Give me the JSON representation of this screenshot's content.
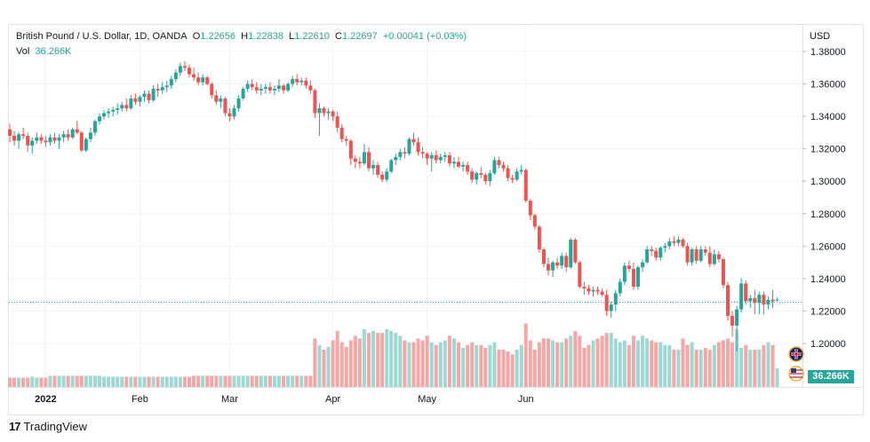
{
  "legend": {
    "symbol": "British Pound / U.S. Dollar, 1D, OANDA",
    "open_label": "O",
    "open": "1.22656",
    "high_label": "H",
    "high": "1.22838",
    "low_label": "L",
    "low": "1.22610",
    "close_label": "C",
    "close": "1.22697",
    "change": "+0.00041 (+0.03%)",
    "vol_label": "Vol",
    "vol_value": "36.266K"
  },
  "price_axis": {
    "currency": "USD",
    "ticks": [
      "1.38000",
      "1.36000",
      "1.34000",
      "1.32000",
      "1.30000",
      "1.28000",
      "1.26000",
      "1.24000",
      "1.22000",
      "1.20000"
    ]
  },
  "time_axis": {
    "ticks": [
      "2022",
      "Feb",
      "Mar",
      "Apr",
      "May",
      "Jun"
    ]
  },
  "volume_badge": "36.266K",
  "footer": {
    "brand": "TradingView"
  },
  "colors": {
    "up": "#26a69a",
    "down": "#ef5350",
    "vol_up": "#9ed8d2",
    "vol_down": "#f5a7a5",
    "grid": "#f0f3fa",
    "axis_text": "#131722"
  },
  "chart_data": {
    "type": "candlestick",
    "title": "British Pound / U.S. Dollar",
    "interval": "1D",
    "source": "OANDA",
    "x_start": "2021-12-22",
    "ylim": [
      1.19,
      1.385
    ],
    "last_close": 1.22697,
    "candles": [
      [
        1.332,
        1.3355,
        1.324,
        1.328,
        0.1
      ],
      [
        1.328,
        1.331,
        1.322,
        1.325,
        0.1
      ],
      [
        1.325,
        1.3305,
        1.32,
        1.329,
        0.1
      ],
      [
        1.329,
        1.333,
        1.326,
        1.328,
        0.1
      ],
      [
        1.328,
        1.33,
        1.318,
        1.322,
        0.1
      ],
      [
        1.322,
        1.327,
        1.317,
        1.325,
        0.11
      ],
      [
        1.325,
        1.33,
        1.323,
        1.327,
        0.1
      ],
      [
        1.327,
        1.329,
        1.323,
        1.325,
        0.1
      ],
      [
        1.325,
        1.328,
        1.321,
        1.324,
        0.1
      ],
      [
        1.324,
        1.329,
        1.322,
        1.327,
        0.12
      ],
      [
        1.327,
        1.33,
        1.323,
        1.325,
        0.12
      ],
      [
        1.325,
        1.329,
        1.32,
        1.327,
        0.12
      ],
      [
        1.327,
        1.331,
        1.324,
        1.329,
        0.12
      ],
      [
        1.329,
        1.332,
        1.325,
        1.327,
        0.12
      ],
      [
        1.327,
        1.333,
        1.326,
        1.332,
        0.12
      ],
      [
        1.332,
        1.337,
        1.329,
        1.33,
        0.12
      ],
      [
        1.33,
        1.331,
        1.318,
        1.319,
        0.12
      ],
      [
        1.319,
        1.327,
        1.318,
        1.326,
        0.12
      ],
      [
        1.326,
        1.333,
        1.324,
        1.33,
        0.12
      ],
      [
        1.33,
        1.338,
        1.328,
        1.337,
        0.12
      ],
      [
        1.337,
        1.342,
        1.335,
        1.34,
        0.12
      ],
      [
        1.34,
        1.344,
        1.338,
        1.342,
        0.11
      ],
      [
        1.342,
        1.345,
        1.339,
        1.343,
        0.11
      ],
      [
        1.343,
        1.346,
        1.34,
        1.344,
        0.11
      ],
      [
        1.344,
        1.348,
        1.341,
        1.345,
        0.11
      ],
      [
        1.345,
        1.349,
        1.343,
        1.347,
        0.11
      ],
      [
        1.347,
        1.351,
        1.343,
        1.345,
        0.11
      ],
      [
        1.345,
        1.353,
        1.344,
        1.351,
        0.11
      ],
      [
        1.351,
        1.354,
        1.347,
        1.349,
        0.11
      ],
      [
        1.349,
        1.353,
        1.346,
        1.352,
        0.11
      ],
      [
        1.352,
        1.356,
        1.349,
        1.354,
        0.11
      ],
      [
        1.354,
        1.356,
        1.348,
        1.35,
        0.11
      ],
      [
        1.35,
        1.359,
        1.349,
        1.357,
        0.11
      ],
      [
        1.357,
        1.36,
        1.352,
        1.356,
        0.11
      ],
      [
        1.356,
        1.361,
        1.354,
        1.358,
        0.11
      ],
      [
        1.358,
        1.362,
        1.355,
        1.359,
        0.11
      ],
      [
        1.359,
        1.365,
        1.357,
        1.363,
        0.11
      ],
      [
        1.363,
        1.369,
        1.361,
        1.367,
        0.11
      ],
      [
        1.367,
        1.373,
        1.365,
        1.371,
        0.11
      ],
      [
        1.371,
        1.374,
        1.368,
        1.37,
        0.11
      ],
      [
        1.37,
        1.372,
        1.364,
        1.366,
        0.11
      ],
      [
        1.366,
        1.37,
        1.362,
        1.364,
        0.12
      ],
      [
        1.364,
        1.367,
        1.359,
        1.361,
        0.12
      ],
      [
        1.361,
        1.366,
        1.359,
        1.364,
        0.12
      ],
      [
        1.364,
        1.365,
        1.359,
        1.36,
        0.12
      ],
      [
        1.36,
        1.361,
        1.351,
        1.353,
        0.12
      ],
      [
        1.353,
        1.356,
        1.347,
        1.349,
        0.12
      ],
      [
        1.349,
        1.353,
        1.345,
        1.351,
        0.12
      ],
      [
        1.351,
        1.352,
        1.34,
        1.342,
        0.12
      ],
      [
        1.342,
        1.345,
        1.337,
        1.34,
        0.12
      ],
      [
        1.34,
        1.347,
        1.338,
        1.345,
        0.12
      ],
      [
        1.345,
        1.353,
        1.343,
        1.351,
        0.12
      ],
      [
        1.351,
        1.358,
        1.35,
        1.357,
        0.12
      ],
      [
        1.357,
        1.362,
        1.355,
        1.36,
        0.12
      ],
      [
        1.36,
        1.363,
        1.356,
        1.358,
        0.12
      ],
      [
        1.358,
        1.361,
        1.354,
        1.356,
        0.12
      ],
      [
        1.356,
        1.36,
        1.353,
        1.357,
        0.12
      ],
      [
        1.357,
        1.36,
        1.354,
        1.358,
        0.12
      ],
      [
        1.358,
        1.361,
        1.354,
        1.356,
        0.12
      ],
      [
        1.356,
        1.359,
        1.353,
        1.357,
        0.12
      ],
      [
        1.357,
        1.363,
        1.355,
        1.359,
        0.12
      ],
      [
        1.359,
        1.36,
        1.354,
        1.356,
        0.12
      ],
      [
        1.356,
        1.361,
        1.355,
        1.36,
        0.12
      ],
      [
        1.36,
        1.365,
        1.358,
        1.363,
        0.12
      ],
      [
        1.363,
        1.366,
        1.359,
        1.361,
        0.12
      ],
      [
        1.361,
        1.364,
        1.359,
        1.362,
        0.12
      ],
      [
        1.362,
        1.364,
        1.357,
        1.359,
        0.12
      ],
      [
        1.359,
        1.362,
        1.354,
        1.356,
        0.12
      ],
      [
        1.356,
        1.357,
        1.339,
        1.342,
        0.52
      ],
      [
        1.342,
        1.348,
        1.328,
        1.345,
        0.45
      ],
      [
        1.345,
        1.346,
        1.34,
        1.342,
        0.4
      ],
      [
        1.342,
        1.345,
        1.338,
        1.343,
        0.43
      ],
      [
        1.343,
        1.344,
        1.337,
        1.34,
        0.5
      ],
      [
        1.34,
        1.343,
        1.33,
        1.333,
        0.6
      ],
      [
        1.333,
        1.335,
        1.324,
        1.326,
        0.48
      ],
      [
        1.326,
        1.328,
        1.322,
        1.325,
        0.43
      ],
      [
        1.325,
        1.326,
        1.31,
        1.314,
        0.5
      ],
      [
        1.314,
        1.316,
        1.308,
        1.312,
        0.55
      ],
      [
        1.312,
        1.315,
        1.308,
        1.311,
        0.52
      ],
      [
        1.311,
        1.323,
        1.31,
        1.318,
        0.62
      ],
      [
        1.318,
        1.321,
        1.306,
        1.308,
        0.58
      ],
      [
        1.308,
        1.313,
        1.304,
        1.31,
        0.6
      ],
      [
        1.31,
        1.312,
        1.302,
        1.304,
        0.58
      ],
      [
        1.304,
        1.306,
        1.2995,
        1.301,
        0.58
      ],
      [
        1.301,
        1.308,
        1.2995,
        1.306,
        0.62
      ],
      [
        1.306,
        1.314,
        1.305,
        1.313,
        0.6
      ],
      [
        1.313,
        1.317,
        1.31,
        1.315,
        0.58
      ],
      [
        1.315,
        1.32,
        1.313,
        1.318,
        0.55
      ],
      [
        1.318,
        1.321,
        1.314,
        1.317,
        0.5
      ],
      [
        1.317,
        1.327,
        1.316,
        1.326,
        0.48
      ],
      [
        1.326,
        1.33,
        1.322,
        1.324,
        0.48
      ],
      [
        1.324,
        1.327,
        1.316,
        1.318,
        0.52
      ],
      [
        1.318,
        1.321,
        1.314,
        1.317,
        0.5
      ],
      [
        1.317,
        1.318,
        1.31,
        1.314,
        0.55
      ],
      [
        1.314,
        1.318,
        1.306,
        1.316,
        0.48
      ],
      [
        1.316,
        1.319,
        1.311,
        1.313,
        0.45
      ],
      [
        1.313,
        1.317,
        1.311,
        1.315,
        0.48
      ],
      [
        1.315,
        1.318,
        1.312,
        1.316,
        0.5
      ],
      [
        1.316,
        1.318,
        1.309,
        1.311,
        0.55
      ],
      [
        1.311,
        1.315,
        1.308,
        1.312,
        0.52
      ],
      [
        1.312,
        1.315,
        1.308,
        1.309,
        0.48
      ],
      [
        1.309,
        1.312,
        1.306,
        1.31,
        0.42
      ],
      [
        1.31,
        1.312,
        1.304,
        1.306,
        0.45
      ],
      [
        1.306,
        1.308,
        1.299,
        1.301,
        0.48
      ],
      [
        1.301,
        1.306,
        1.298,
        1.305,
        0.45
      ],
      [
        1.305,
        1.309,
        1.302,
        1.304,
        0.45
      ],
      [
        1.304,
        1.305,
        1.298,
        1.3,
        0.42
      ],
      [
        1.3,
        1.307,
        1.297,
        1.305,
        0.45
      ],
      [
        1.305,
        1.315,
        1.304,
        1.313,
        0.48
      ],
      [
        1.313,
        1.315,
        1.308,
        1.31,
        0.4
      ],
      [
        1.31,
        1.312,
        1.306,
        1.308,
        0.4
      ],
      [
        1.308,
        1.31,
        1.3,
        1.302,
        0.38
      ],
      [
        1.302,
        1.304,
        1.299,
        1.301,
        0.35
      ],
      [
        1.301,
        1.308,
        1.3,
        1.306,
        0.4
      ],
      [
        1.306,
        1.31,
        1.304,
        1.307,
        0.45
      ],
      [
        1.307,
        1.308,
        1.287,
        1.288,
        0.68
      ],
      [
        1.288,
        1.289,
        1.276,
        1.279,
        0.5
      ],
      [
        1.279,
        1.28,
        1.27,
        1.272,
        0.4
      ],
      [
        1.272,
        1.273,
        1.256,
        1.258,
        0.48
      ],
      [
        1.258,
        1.259,
        1.247,
        1.249,
        0.52
      ],
      [
        1.249,
        1.253,
        1.242,
        1.245,
        0.52
      ],
      [
        1.245,
        1.251,
        1.241,
        1.25,
        0.5
      ],
      [
        1.25,
        1.253,
        1.246,
        1.248,
        0.48
      ],
      [
        1.248,
        1.256,
        1.246,
        1.254,
        0.48
      ],
      [
        1.254,
        1.256,
        1.244,
        1.247,
        0.52
      ],
      [
        1.247,
        1.265,
        1.246,
        1.264,
        0.55
      ],
      [
        1.264,
        1.265,
        1.249,
        1.25,
        0.6
      ],
      [
        1.25,
        1.251,
        1.234,
        1.235,
        0.55
      ],
      [
        1.235,
        1.238,
        1.23,
        1.234,
        0.42
      ],
      [
        1.234,
        1.236,
        1.23,
        1.232,
        0.45
      ],
      [
        1.232,
        1.235,
        1.229,
        1.233,
        0.5
      ],
      [
        1.233,
        1.235,
        1.23,
        1.232,
        0.52
      ],
      [
        1.232,
        1.234,
        1.229,
        1.23,
        0.55
      ],
      [
        1.23,
        1.233,
        1.217,
        1.22,
        0.58
      ],
      [
        1.22,
        1.226,
        1.216,
        1.224,
        0.58
      ],
      [
        1.224,
        1.233,
        1.22,
        1.231,
        0.52
      ],
      [
        1.231,
        1.24,
        1.229,
        1.238,
        0.48
      ],
      [
        1.238,
        1.25,
        1.236,
        1.248,
        0.5
      ],
      [
        1.248,
        1.251,
        1.244,
        1.246,
        0.45
      ],
      [
        1.246,
        1.25,
        1.233,
        1.235,
        0.55
      ],
      [
        1.235,
        1.248,
        1.233,
        1.247,
        0.5
      ],
      [
        1.247,
        1.252,
        1.244,
        1.25,
        0.55
      ],
      [
        1.25,
        1.26,
        1.249,
        1.258,
        0.52
      ],
      [
        1.258,
        1.26,
        1.254,
        1.257,
        0.5
      ],
      [
        1.257,
        1.259,
        1.251,
        1.253,
        0.48
      ],
      [
        1.253,
        1.26,
        1.251,
        1.259,
        0.48
      ],
      [
        1.259,
        1.262,
        1.256,
        1.26,
        0.45
      ],
      [
        1.26,
        1.265,
        1.258,
        1.263,
        0.45
      ],
      [
        1.263,
        1.266,
        1.26,
        1.262,
        0.4
      ],
      [
        1.262,
        1.266,
        1.26,
        1.264,
        0.4
      ],
      [
        1.264,
        1.265,
        1.259,
        1.26,
        0.52
      ],
      [
        1.26,
        1.262,
        1.248,
        1.25,
        0.45
      ],
      [
        1.25,
        1.259,
        1.248,
        1.258,
        0.48
      ],
      [
        1.258,
        1.26,
        1.249,
        1.251,
        0.4
      ],
      [
        1.251,
        1.26,
        1.25,
        1.258,
        0.4
      ],
      [
        1.258,
        1.26,
        1.254,
        1.256,
        0.42
      ],
      [
        1.256,
        1.26,
        1.247,
        1.249,
        0.4
      ],
      [
        1.249,
        1.258,
        1.248,
        1.255,
        0.45
      ],
      [
        1.255,
        1.257,
        1.25,
        1.252,
        0.48
      ],
      [
        1.252,
        1.253,
        1.234,
        1.236,
        0.5
      ],
      [
        1.236,
        1.238,
        1.214,
        1.217,
        0.52
      ],
      [
        1.217,
        1.22,
        1.204,
        1.211,
        0.48
      ],
      [
        1.211,
        1.223,
        1.195,
        1.221,
        0.62
      ],
      [
        1.221,
        1.24,
        1.219,
        1.237,
        0.42
      ],
      [
        1.237,
        1.239,
        1.224,
        1.226,
        0.45
      ],
      [
        1.226,
        1.23,
        1.222,
        1.228,
        0.4
      ],
      [
        1.228,
        1.233,
        1.218,
        1.225,
        0.4
      ],
      [
        1.225,
        1.232,
        1.218,
        1.23,
        0.4
      ],
      [
        1.23,
        1.232,
        1.218,
        1.224,
        0.45
      ],
      [
        1.224,
        1.229,
        1.221,
        1.227,
        0.48
      ],
      [
        1.227,
        1.233,
        1.222,
        1.226,
        0.45
      ],
      [
        1.22656,
        1.22838,
        1.2261,
        1.22697,
        0.2
      ]
    ]
  }
}
